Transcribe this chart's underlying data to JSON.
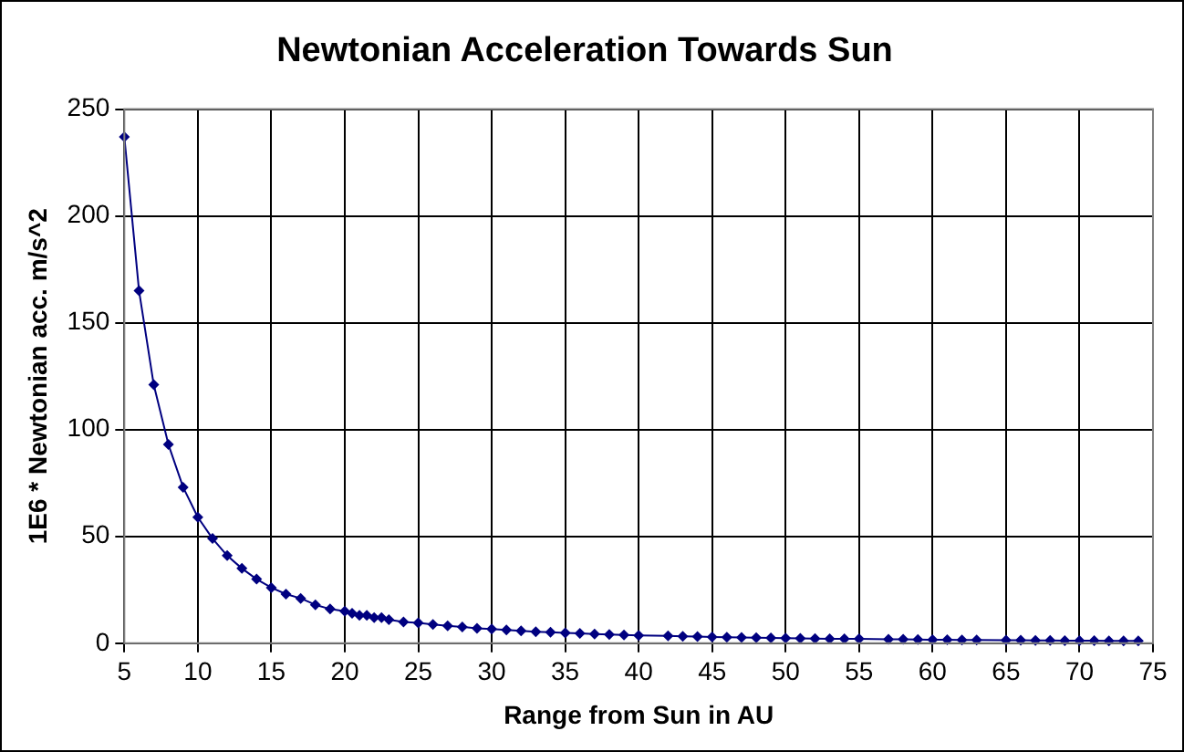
{
  "chart_data": {
    "type": "line",
    "title": "Newtonian Acceleration Towards Sun",
    "xlabel": "Range from Sun in AU",
    "ylabel": "1E6 * Newtonian acc. m/s^2",
    "x": [
      5,
      6,
      7,
      8,
      9,
      10,
      11,
      12,
      13,
      14,
      15,
      16,
      17,
      18,
      19,
      20,
      20.5,
      21,
      21.5,
      22,
      22.5,
      23,
      24,
      25,
      26,
      27,
      28,
      29,
      30,
      31,
      32,
      33,
      34,
      35,
      36,
      37,
      38,
      39,
      40,
      42,
      43,
      44,
      45,
      46,
      47,
      48,
      49,
      50,
      51,
      52,
      53,
      54,
      55,
      57,
      58,
      59,
      60,
      61,
      62,
      63,
      65,
      66,
      67,
      68,
      69,
      70,
      71,
      72,
      73,
      74
    ],
    "series": [
      {
        "color": "#000080",
        "values": [
          237,
          165,
          121,
          93,
          73,
          59,
          49,
          41,
          35,
          30,
          26,
          23,
          21,
          18,
          16,
          15,
          14,
          13,
          13,
          12,
          12,
          11,
          10,
          9.5,
          8.8,
          8.1,
          7.6,
          7,
          6.6,
          6.2,
          5.8,
          5.4,
          5.1,
          4.8,
          4.6,
          4.3,
          4.1,
          3.9,
          3.7,
          3.4,
          3.2,
          3.1,
          2.9,
          2.8,
          2.7,
          2.6,
          2.5,
          2.4,
          2.3,
          2.2,
          2.1,
          2,
          2,
          1.8,
          1.8,
          1.7,
          1.6,
          1.6,
          1.5,
          1.5,
          1.4,
          1.4,
          1.3,
          1.3,
          1.2,
          1.2,
          1.2,
          1.1,
          1.1,
          1.1
        ]
      }
    ],
    "xlim": [
      5,
      75
    ],
    "xticks": [
      5,
      10,
      15,
      20,
      25,
      30,
      35,
      40,
      45,
      50,
      55,
      60,
      65,
      70,
      75
    ],
    "ylim": [
      0,
      250
    ],
    "yticks": [
      0,
      50,
      100,
      150,
      200,
      250
    ],
    "grid": true,
    "legend": false,
    "marker": "diamond",
    "line_style": "solid"
  }
}
